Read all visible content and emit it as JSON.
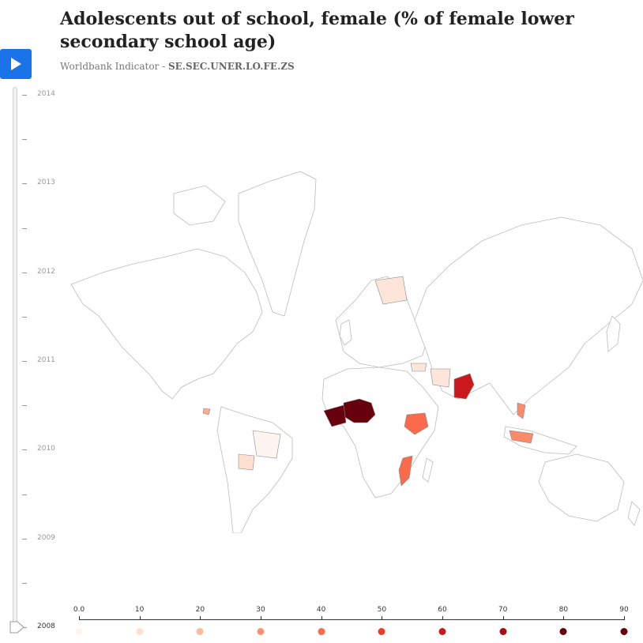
{
  "header": {
    "title": "Adolescents out of school, female (% of female lower secondary school age)",
    "subtitle_prefix": "Worldbank Indicator - ",
    "indicator_code": "SE.SEC.UNER.LO.FE.ZS"
  },
  "controls": {
    "play_icon": "play-icon"
  },
  "timeline": {
    "years": [
      "2014",
      "2013",
      "2012",
      "2011",
      "2010",
      "2009",
      "2008"
    ],
    "current_year": "2008"
  },
  "legend": {
    "labels": [
      "0.0",
      "10",
      "20",
      "30",
      "40",
      "50",
      "60",
      "70",
      "80",
      "90"
    ],
    "colors": [
      "#fff5f0",
      "#fee0d2",
      "#fcbba1",
      "#fc9272",
      "#fb6a4a",
      "#ef3b2c",
      "#cb181d",
      "#a50f15",
      "#67000d",
      "#67000d"
    ]
  },
  "map": {
    "highlight_colors": {
      "very_high": "#67000d",
      "high": "#cb181d",
      "mid": "#fb6a4a",
      "low": "#fcae91",
      "very_low": "#fee5d9"
    }
  }
}
